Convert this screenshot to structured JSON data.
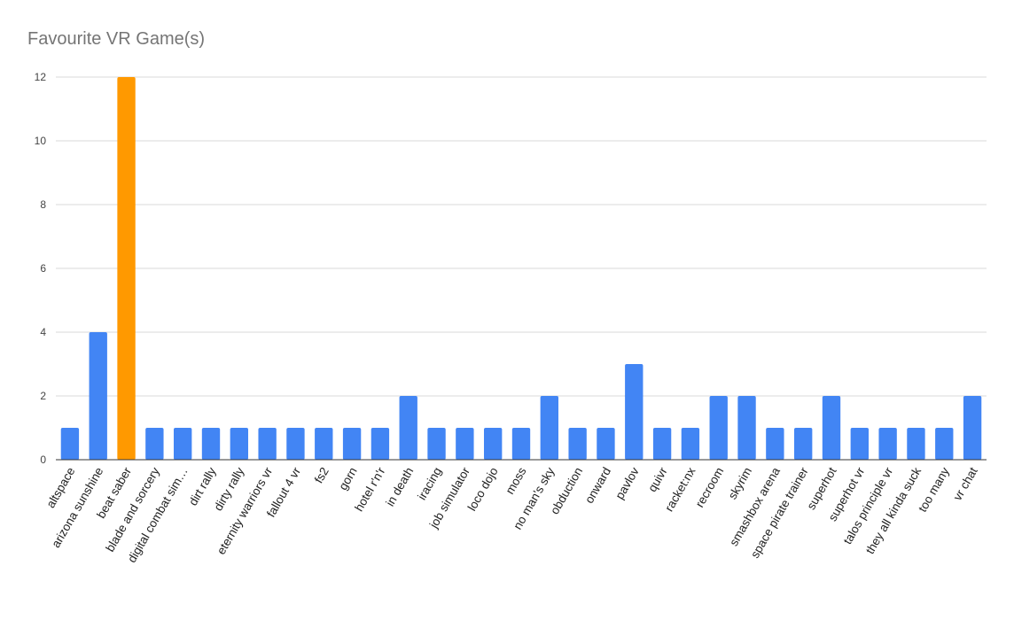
{
  "chart_data": {
    "type": "bar",
    "title": "Favourite VR Game(s)",
    "xlabel": "",
    "ylabel": "",
    "ylim": [
      0,
      12
    ],
    "yticks": [
      0,
      2,
      4,
      6,
      8,
      10,
      12
    ],
    "grid": true,
    "legend": "none",
    "colors": {
      "default": "#4285f4",
      "highlight": "#ff9900"
    },
    "highlight_category": "beat saber",
    "categories": [
      "altspace",
      "arizona sunshine",
      "beat saber",
      "blade and sorcery",
      "digital combat sim…",
      "dirt rally",
      "dirty rally",
      "eternity warriors vr",
      "fallout 4 vr",
      "fs2",
      "gorn",
      "hotel r'n'r",
      "in death",
      "iracing",
      "job simulator",
      "loco dojo",
      "moss",
      "no man's sky",
      "obduction",
      "onward",
      "pavlov",
      "quivr",
      "racket:nx",
      "recroom",
      "skyrim",
      "smashbox arena",
      "space pirate trainer",
      "superhot",
      "superhot vr",
      "talos principle vr",
      "they all kinda suck",
      "too many",
      "vr chat"
    ],
    "values": [
      1,
      4,
      12,
      1,
      1,
      1,
      1,
      1,
      1,
      1,
      1,
      1,
      2,
      1,
      1,
      1,
      1,
      2,
      1,
      1,
      3,
      1,
      1,
      2,
      2,
      1,
      1,
      2,
      1,
      1,
      1,
      1,
      2
    ]
  }
}
